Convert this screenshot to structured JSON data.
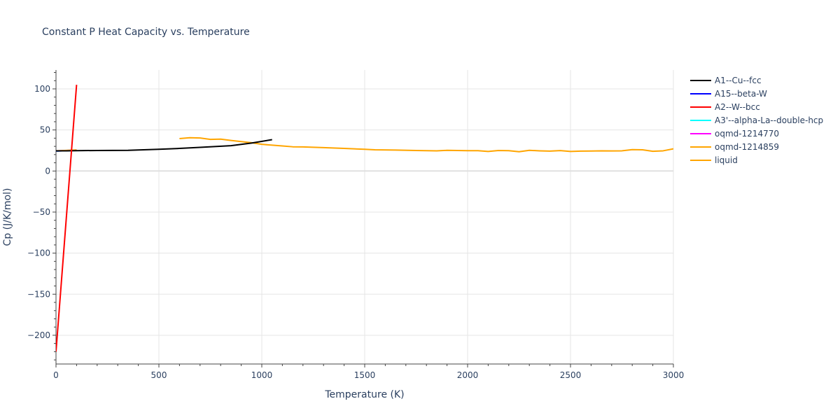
{
  "chart_data": {
    "type": "line",
    "title": "Constant P Heat Capacity vs. Temperature",
    "xlabel": "Temperature (K)",
    "ylabel": "Cp (J/K/mol)",
    "xlim": [
      0,
      3000
    ],
    "ylim": [
      -235,
      123
    ],
    "x_ticks": [
      0,
      500,
      1000,
      1500,
      2000,
      2500,
      3000
    ],
    "y_ticks": [
      -200,
      -150,
      -100,
      -50,
      0,
      50,
      100
    ],
    "grid": true,
    "legend_position": "right",
    "series": [
      {
        "name": "A1--Cu--fcc",
        "color": "#000000",
        "x": [
          0,
          50,
          100,
          200,
          350,
          500,
          600,
          700,
          850,
          950,
          1050
        ],
        "y": [
          24.5,
          24.6,
          24.8,
          25.0,
          25.2,
          26.5,
          27.5,
          28.8,
          30.8,
          34.0,
          38.2
        ]
      },
      {
        "name": "A15--beta-W",
        "color": "#0000ff",
        "x": [
          0,
          50,
          100
        ],
        "y": [
          24.2,
          24.8,
          25.2
        ]
      },
      {
        "name": "A2--W--bcc",
        "color": "#ff0000",
        "x": [
          0,
          20,
          40,
          60,
          80,
          100
        ],
        "y": [
          -220,
          -155,
          -90,
          -25,
          40,
          105
        ]
      },
      {
        "name": "A3'--alpha-La--double-hcp",
        "color": "#00ffff",
        "x": [
          0,
          50,
          100
        ],
        "y": [
          24.3,
          24.9,
          25.4
        ]
      },
      {
        "name": "oqmd-1214770",
        "color": "#ff00ff",
        "x": [
          0,
          50,
          100
        ],
        "y": [
          24.4,
          25.0,
          25.5
        ]
      },
      {
        "name": "oqmd-1214859",
        "color": "#ffa500",
        "x": [
          0,
          50,
          100
        ],
        "y": [
          24.6,
          25.1,
          25.6
        ]
      },
      {
        "name": "liquid",
        "color": "#ffa500",
        "x": [
          600,
          650,
          700,
          750,
          800,
          850,
          900,
          950,
          1000,
          1100,
          1150,
          1200,
          1300,
          1400,
          1500,
          1550,
          1650,
          1750,
          1850,
          1900,
          1950,
          2000,
          2050,
          2100,
          2150,
          2200,
          2250,
          2300,
          2350,
          2400,
          2450,
          2500,
          2550,
          2600,
          2650,
          2700,
          2750,
          2800,
          2850,
          2900,
          2950,
          3000
        ],
        "y": [
          39.5,
          40.5,
          40.2,
          38.5,
          38.8,
          37.2,
          35.8,
          34.5,
          32.5,
          30.5,
          29.5,
          29.3,
          28.5,
          27.5,
          26.5,
          25.8,
          25.5,
          25.0,
          24.5,
          25.2,
          25.0,
          24.8,
          24.8,
          23.8,
          25.0,
          24.8,
          23.5,
          25.2,
          24.6,
          24.2,
          24.9,
          23.8,
          24.2,
          24.3,
          24.5,
          24.4,
          24.6,
          26.0,
          25.8,
          24.0,
          24.6,
          27.0
        ]
      }
    ]
  }
}
